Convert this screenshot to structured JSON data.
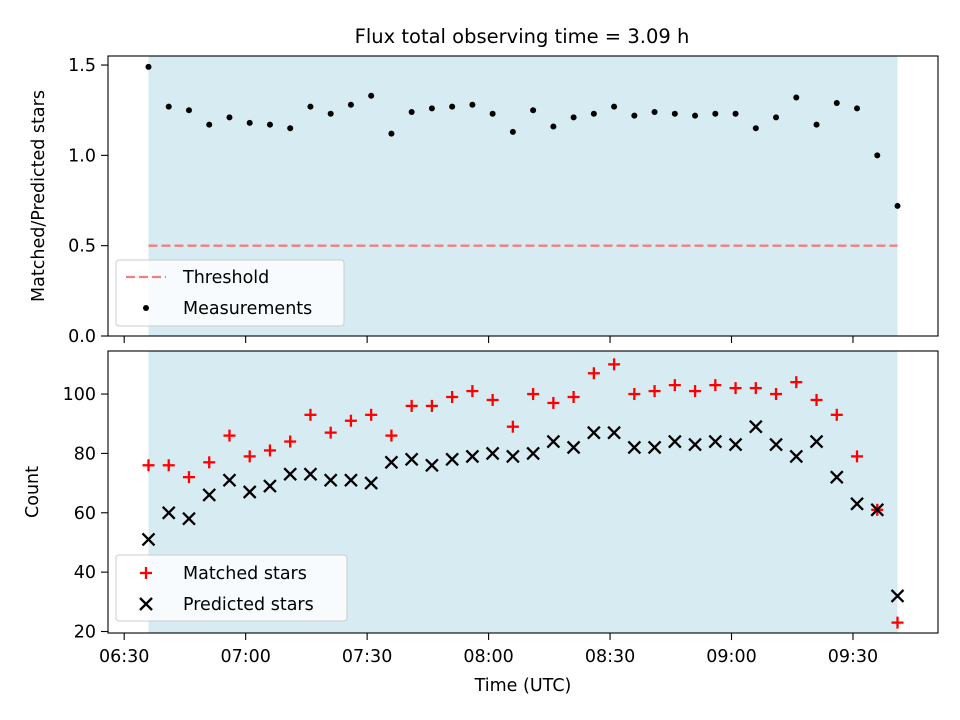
{
  "figure": {
    "title": "Flux total observing time = 3.09 h"
  },
  "colors": {
    "observing_band": "#add8e6",
    "threshold": "#f08080",
    "measurements": "#000000",
    "matched": "#ff0000",
    "predicted": "#000000"
  },
  "chart_data": [
    {
      "type": "scatter",
      "panel": "top",
      "title": "Flux total observing time = 3.09 h",
      "xlabel": "",
      "ylabel": "Matched/Predicted stars",
      "xlim": [
        "06:26",
        "09:51"
      ],
      "ylim": [
        0.0,
        1.55
      ],
      "yticks": [
        0.0,
        0.5,
        1.0,
        1.5
      ],
      "ytick_labels": [
        "0.0",
        "0.5",
        "1.0",
        "1.5"
      ],
      "xticks": [
        "06:30",
        "07:00",
        "07:30",
        "08:00",
        "08:30",
        "09:00",
        "09:30"
      ],
      "shaded_span": {
        "from": "06:36",
        "to": "09:41"
      },
      "threshold": {
        "name": "Threshold",
        "value": 0.5,
        "from": "06:36",
        "to": "09:41"
      },
      "legend": {
        "placement": "lower-left",
        "entries": [
          "Threshold",
          "Measurements"
        ]
      },
      "series": [
        {
          "name": "Measurements",
          "marker": "dot",
          "x": [
            "06:36",
            "06:41",
            "06:46",
            "06:51",
            "06:56",
            "07:01",
            "07:06",
            "07:11",
            "07:16",
            "07:21",
            "07:26",
            "07:31",
            "07:36",
            "07:41",
            "07:46",
            "07:51",
            "07:56",
            "08:01",
            "08:06",
            "08:11",
            "08:16",
            "08:21",
            "08:26",
            "08:31",
            "08:36",
            "08:41",
            "08:46",
            "08:51",
            "08:56",
            "09:01",
            "09:06",
            "09:11",
            "09:16",
            "09:21",
            "09:26",
            "09:31",
            "09:36",
            "09:41"
          ],
          "y": [
            1.49,
            1.27,
            1.25,
            1.17,
            1.21,
            1.18,
            1.17,
            1.15,
            1.27,
            1.23,
            1.28,
            1.33,
            1.12,
            1.24,
            1.26,
            1.27,
            1.28,
            1.23,
            1.13,
            1.25,
            1.16,
            1.21,
            1.23,
            1.27,
            1.22,
            1.24,
            1.23,
            1.22,
            1.23,
            1.23,
            1.15,
            1.21,
            1.32,
            1.17,
            1.29,
            1.26,
            1.0,
            0.72
          ]
        }
      ]
    },
    {
      "type": "scatter",
      "panel": "bottom",
      "xlabel": "Time (UTC)",
      "ylabel": "Count",
      "xlim": [
        "06:26",
        "09:51"
      ],
      "ylim": [
        19.5,
        114.5
      ],
      "yticks": [
        20,
        40,
        60,
        80,
        100
      ],
      "ytick_labels": [
        "20",
        "40",
        "60",
        "80",
        "100"
      ],
      "xticks": [
        "06:30",
        "07:00",
        "07:30",
        "08:00",
        "08:30",
        "09:00",
        "09:30"
      ],
      "xtick_labels": [
        "06:30",
        "07:00",
        "07:30",
        "08:00",
        "08:30",
        "09:00",
        "09:30"
      ],
      "shaded_span": {
        "from": "06:36",
        "to": "09:41"
      },
      "legend": {
        "placement": "lower-left",
        "entries": [
          "Matched stars",
          "Predicted stars"
        ]
      },
      "series": [
        {
          "name": "Matched stars",
          "marker": "plus",
          "x": [
            "06:36",
            "06:41",
            "06:46",
            "06:51",
            "06:56",
            "07:01",
            "07:06",
            "07:11",
            "07:16",
            "07:21",
            "07:26",
            "07:31",
            "07:36",
            "07:41",
            "07:46",
            "07:51",
            "07:56",
            "08:01",
            "08:06",
            "08:11",
            "08:16",
            "08:21",
            "08:26",
            "08:31",
            "08:36",
            "08:41",
            "08:46",
            "08:51",
            "08:56",
            "09:01",
            "09:06",
            "09:11",
            "09:16",
            "09:21",
            "09:26",
            "09:31",
            "09:36",
            "09:41"
          ],
          "y": [
            76,
            76,
            72,
            77,
            86,
            79,
            81,
            84,
            93,
            87,
            91,
            93,
            86,
            96,
            96,
            99,
            101,
            98,
            89,
            100,
            97,
            99,
            107,
            110,
            100,
            101,
            103,
            101,
            103,
            102,
            102,
            100,
            104,
            98,
            93,
            79,
            61,
            23
          ]
        },
        {
          "name": "Predicted stars",
          "marker": "x",
          "x": [
            "06:36",
            "06:41",
            "06:46",
            "06:51",
            "06:56",
            "07:01",
            "07:06",
            "07:11",
            "07:16",
            "07:21",
            "07:26",
            "07:31",
            "07:36",
            "07:41",
            "07:46",
            "07:51",
            "07:56",
            "08:01",
            "08:06",
            "08:11",
            "08:16",
            "08:21",
            "08:26",
            "08:31",
            "08:36",
            "08:41",
            "08:46",
            "08:51",
            "08:56",
            "09:01",
            "09:06",
            "09:11",
            "09:16",
            "09:21",
            "09:26",
            "09:31",
            "09:36",
            "09:41"
          ],
          "y": [
            51,
            60,
            58,
            66,
            71,
            67,
            69,
            73,
            73,
            71,
            71,
            70,
            77,
            78,
            76,
            78,
            79,
            80,
            79,
            80,
            84,
            82,
            87,
            87,
            82,
            82,
            84,
            83,
            84,
            83,
            89,
            83,
            79,
            84,
            72,
            63,
            61,
            32
          ]
        }
      ]
    }
  ]
}
